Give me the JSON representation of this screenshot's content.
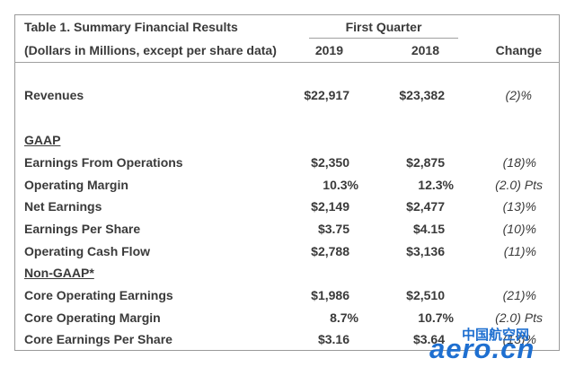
{
  "table": {
    "title": "Table 1. Summary Financial Results",
    "subtitle": "(Dollars in Millions, except per share data)",
    "period_header": "First Quarter",
    "col_2019": "2019",
    "col_2018": "2018",
    "col_change": "Change",
    "revenues": {
      "label": "Revenues",
      "v2019": "$22,917",
      "v2018": "$23,382",
      "change": "(2)%"
    },
    "gaap_label": "GAAP",
    "gaap": [
      {
        "label": "Earnings From Operations",
        "v2019": "$2,350",
        "v2018": "$2,875",
        "change": "(18)%"
      },
      {
        "label": "Operating Margin",
        "v2019": "10.3%",
        "v2018": "12.3%",
        "change": "(2.0) Pts"
      },
      {
        "label": "Net Earnings",
        "v2019": "$2,149",
        "v2018": "$2,477",
        "change": "(13)%"
      },
      {
        "label": "Earnings Per Share",
        "v2019": "$3.75",
        "v2018": "$4.15",
        "change": "(10)%"
      },
      {
        "label": "Operating Cash Flow",
        "v2019": "$2,788",
        "v2018": "$3,136",
        "change": "(11)%"
      }
    ],
    "nongaap_label": "Non-GAAP*",
    "nongaap": [
      {
        "label": "Core Operating Earnings",
        "v2019": "$1,986",
        "v2018": "$2,510",
        "change": "(21)%"
      },
      {
        "label": "Core Operating Margin",
        "v2019": "8.7%",
        "v2018": "10.7%",
        "change": "(2.0) Pts"
      },
      {
        "label": "Core Earnings Per Share",
        "v2019": "$3.16",
        "v2018": "$3.64",
        "change": "(13)%"
      }
    ]
  },
  "watermark": {
    "cn": "中国航空网",
    "en": "aero.cn",
    "color": "#1e6fd0"
  }
}
